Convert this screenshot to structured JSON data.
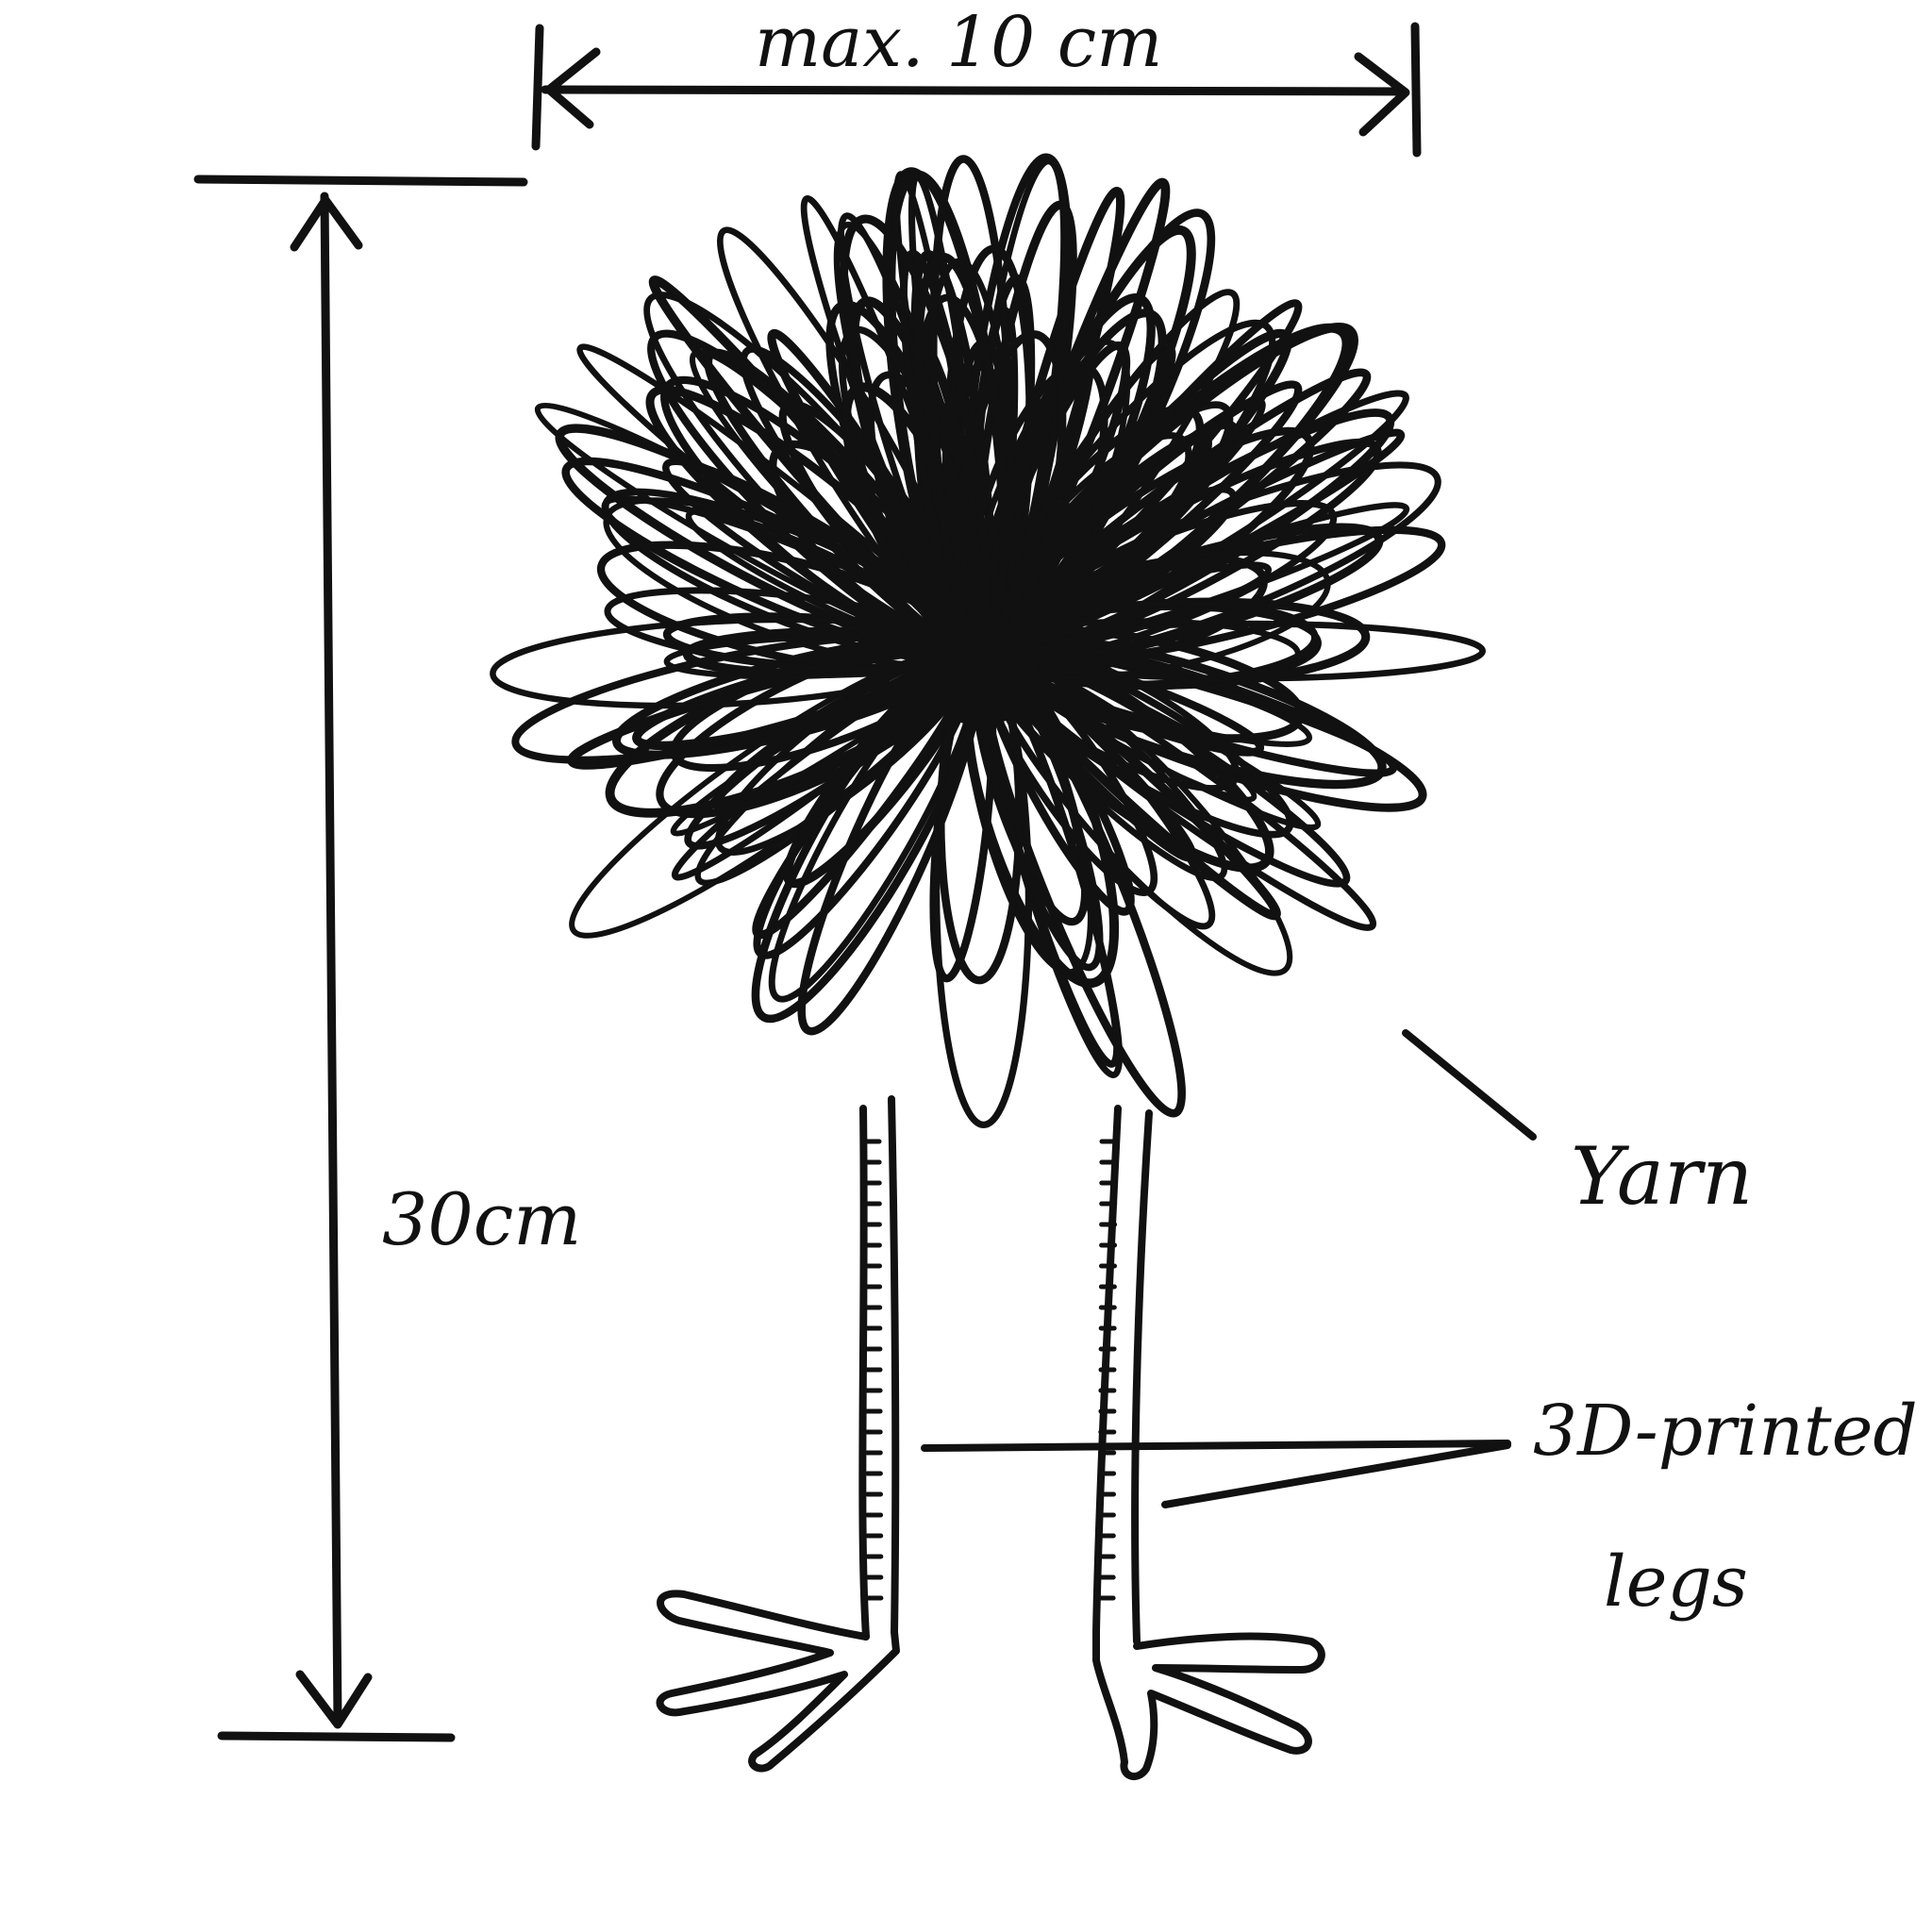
{
  "dimensions": {
    "width_label": "max. 10 cm",
    "height_label": "30cm"
  },
  "callouts": {
    "yarn": "Yarn",
    "legs_line1": "3D-printed",
    "legs_line2": "legs"
  },
  "colors": {
    "ink": "#111111",
    "paper": "#ffffff"
  }
}
